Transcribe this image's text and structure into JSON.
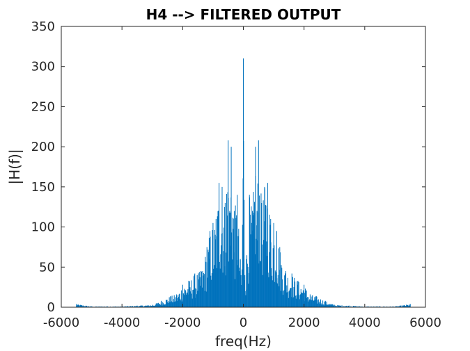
{
  "chart_data": {
    "type": "bar",
    "title": "H4 --> FILTERED OUTPUT",
    "xlabel": "freq(Hz)",
    "ylabel": "|H(f)|",
    "xlim": [
      -6000,
      6000
    ],
    "ylim": [
      0,
      350
    ],
    "xticks": [
      -6000,
      -4000,
      -2000,
      0,
      2000,
      4000,
      6000
    ],
    "xtick_labels": [
      "-6000",
      "-4000",
      "-2000",
      "0",
      "2000",
      "4000",
      "6000"
    ],
    "yticks": [
      0,
      50,
      100,
      150,
      200,
      250,
      300,
      350
    ],
    "ytick_labels": [
      "0",
      "50",
      "100",
      "150",
      "200",
      "250",
      "300",
      "350"
    ],
    "grid": false,
    "series_color": "#0072BD",
    "series": [
      {
        "x": [
          -5500,
          -5000,
          -4500,
          -4000,
          -3500,
          -3000,
          -2700,
          -2400,
          -2200,
          -2000,
          -1800,
          -1600,
          -1400,
          -1200,
          -1100,
          -1000,
          -900,
          -800,
          -700,
          -600,
          -500,
          -450,
          -400,
          -300,
          -200,
          -100,
          -50,
          0,
          50,
          100,
          200,
          300,
          400,
          450,
          500,
          600,
          700,
          800,
          900,
          1000,
          1100,
          1200,
          1400,
          1600,
          1800,
          2000,
          2200,
          2400,
          2700,
          3000,
          3500,
          4000,
          4500,
          5000,
          5500
        ],
        "values": [
          4,
          1,
          1,
          1,
          2,
          3,
          8,
          14,
          16,
          28,
          33,
          42,
          45,
          75,
          95,
          105,
          110,
          155,
          150,
          130,
          208,
          120,
          200,
          120,
          140,
          60,
          40,
          310,
          40,
          60,
          140,
          120,
          200,
          120,
          208,
          130,
          150,
          155,
          110,
          105,
          95,
          75,
          45,
          42,
          33,
          28,
          16,
          14,
          8,
          3,
          2,
          1,
          1,
          1,
          4
        ]
      }
    ]
  }
}
